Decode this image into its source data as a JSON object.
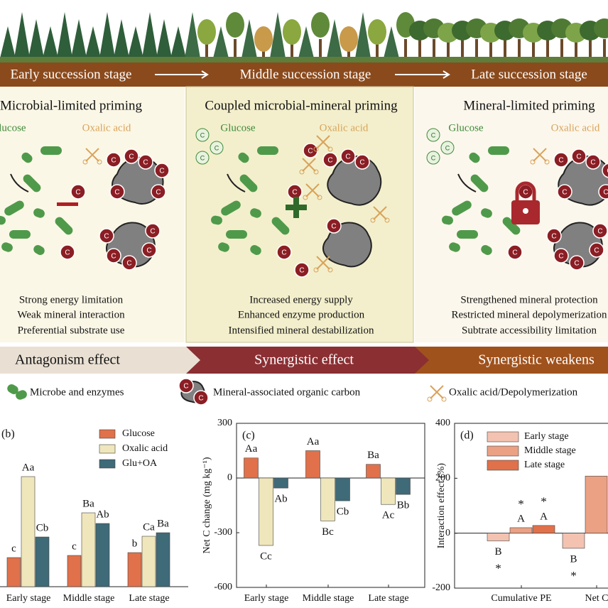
{
  "stages": [
    "Early succession stage",
    "Middle succession stage",
    "Late succession stage"
  ],
  "icon_letter": "C",
  "panels": [
    {
      "title": "Microbial-limited priming",
      "glucose_label": "Glucose",
      "oxalic_label": "Oxalic acid",
      "lines": [
        "Strong energy limitation",
        "Weak mineral interaction",
        "Preferential substrate use"
      ],
      "effect": "Antagonism effect"
    },
    {
      "title": "Coupled microbial-mineral priming",
      "glucose_label": "Glucose",
      "oxalic_label": "Oxalic acid",
      "lines": [
        "Increased energy supply",
        "Enhanced enzyme production",
        "Intensified mineral destabilization"
      ],
      "effect": "Synergistic effect"
    },
    {
      "title": "Mineral-limited priming",
      "glucose_label": "Glucose",
      "oxalic_label": "Oxalic acid",
      "lines": [
        "Strengthened mineral protection",
        "Restricted mineral depolymerization",
        "Subtrate accessibility limitation"
      ],
      "effect": "Synergistic weakens"
    }
  ],
  "legend": [
    "Microbe and enzymes",
    "Mineral-associated organic carbon",
    "Oxalic acid/Depolymerization"
  ],
  "chart_data": [
    {
      "type": "bar",
      "panel_label": "(b)",
      "categories": [
        "Early stage",
        "Middle stage",
        "Late stage"
      ],
      "ylim": [
        0,
        230
      ],
      "series": [
        {
          "name": "Glucose",
          "color": "#e0714a",
          "values": [
            41,
            44,
            48
          ],
          "letters": [
            "c",
            "c",
            "b"
          ]
        },
        {
          "name": "Oxalic acid",
          "color": "#efe6bb",
          "values": [
            155,
            104,
            71
          ],
          "letters": [
            "Aa",
            "Ba",
            "Ca"
          ]
        },
        {
          "name": "Glu+OA",
          "color": "#3f6a78",
          "values": [
            70,
            89,
            76
          ],
          "letters": [
            "Cb",
            "Ab",
            "Ba"
          ]
        }
      ]
    },
    {
      "type": "bar",
      "panel_label": "(c)",
      "y_label": "Net C change (mg kg⁻¹)",
      "categories": [
        "Early stage",
        "Middle stage",
        "Late stage"
      ],
      "ylim": [
        -600,
        300
      ],
      "yticks": [
        -600,
        -300,
        0,
        300
      ],
      "series": [
        {
          "name": "Glucose",
          "color": "#e0714a",
          "values": [
            110,
            150,
            75
          ],
          "letters": [
            "Aa",
            "Aa",
            "Ba"
          ]
        },
        {
          "name": "Oxalic acid",
          "color": "#efe6bb",
          "values": [
            -370,
            -235,
            -145
          ],
          "letters": [
            "Cc",
            "Bc",
            "Ac"
          ]
        },
        {
          "name": "Glu+OA",
          "color": "#3f6a78",
          "values": [
            -55,
            -125,
            -90
          ],
          "letters": [
            "Ab",
            "Cb",
            "Bb"
          ]
        }
      ]
    },
    {
      "type": "bar",
      "panel_label": "(d)",
      "y_label": "Interaction effect (%)",
      "categories": [
        "Cumulative PE",
        "Net C"
      ],
      "ylim": [
        -200,
        400
      ],
      "yticks": [
        -200,
        0,
        200,
        400
      ],
      "series": [
        {
          "name": "Early stage",
          "color": "#f3c2b0",
          "values": [
            -28,
            -55
          ],
          "letters": [
            "B",
            "B"
          ],
          "stars": [
            "*",
            "*"
          ]
        },
        {
          "name": "Middle stage",
          "color": "#eba184",
          "values": [
            20,
            208
          ],
          "letters": [
            "A",
            null
          ],
          "stars": [
            "*",
            null
          ]
        },
        {
          "name": "Late stage",
          "color": "#e0714a",
          "values": [
            28,
            null
          ],
          "letters": [
            "A",
            null
          ],
          "stars": [
            "*",
            null
          ]
        }
      ]
    }
  ]
}
